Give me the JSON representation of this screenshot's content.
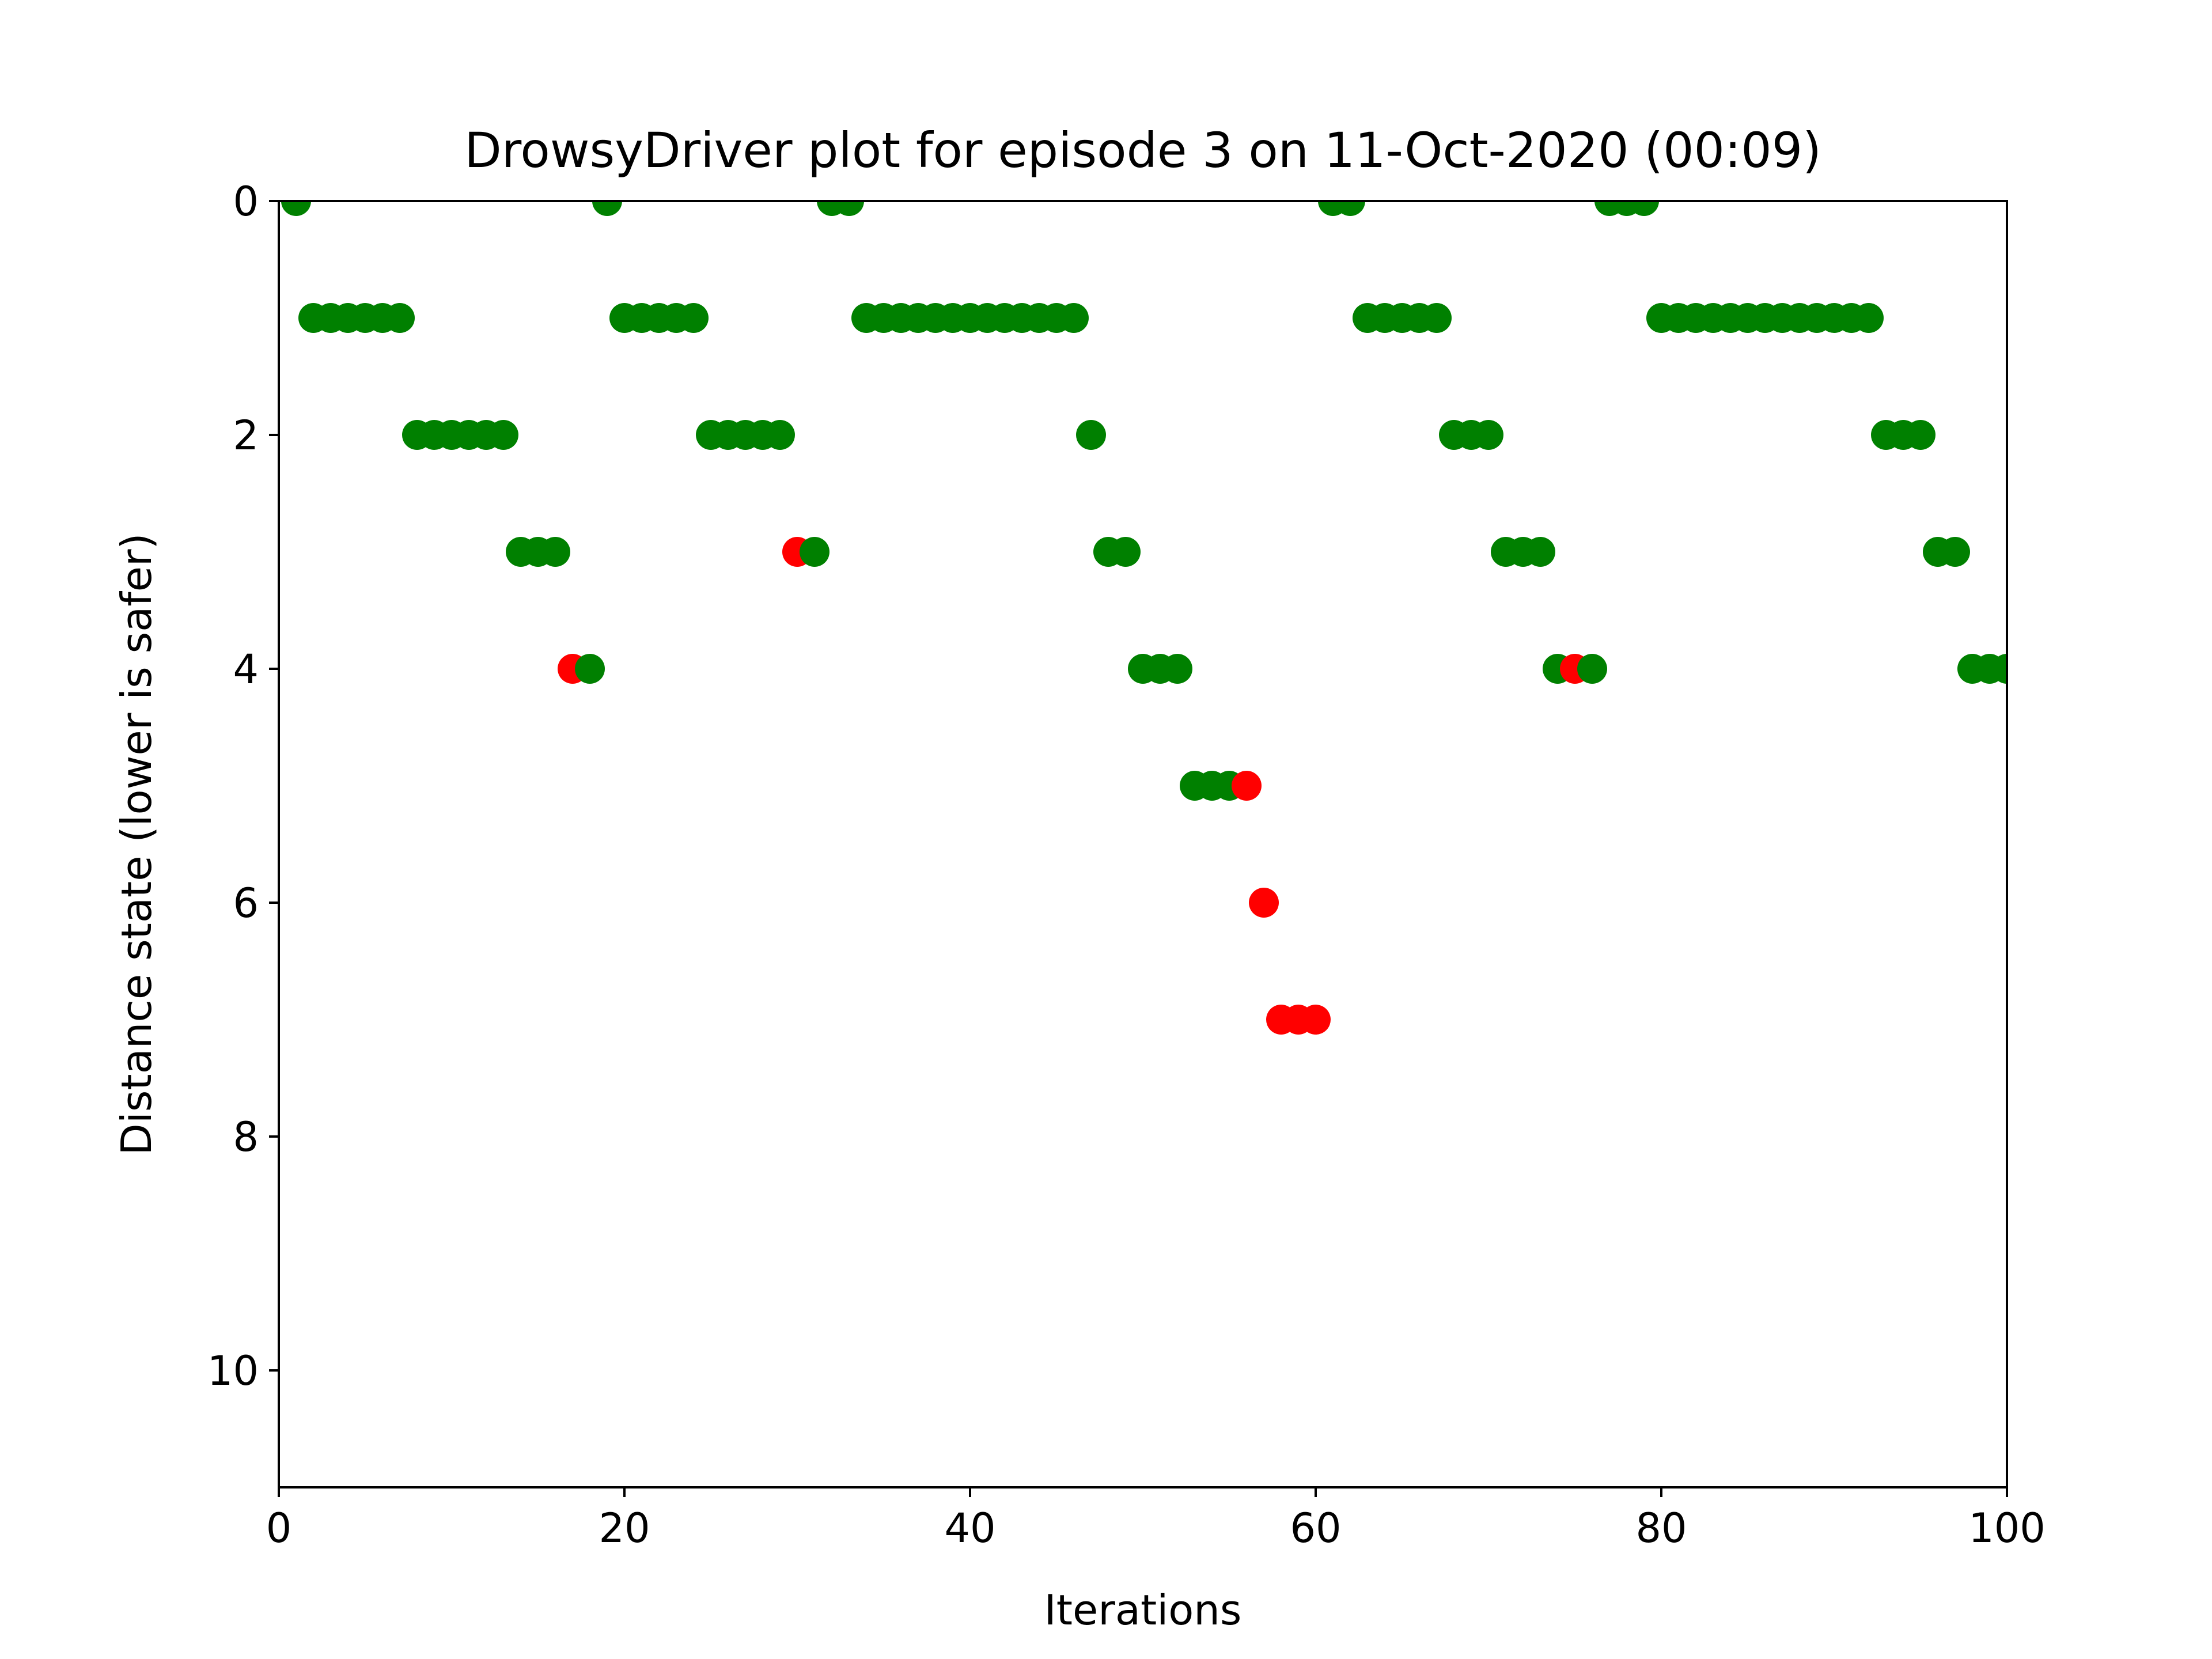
{
  "chart_data": {
    "type": "scatter",
    "title": "DrowsyDriver plot for episode 3 on 11-Oct-2020 (00:09)",
    "xlabel": "Iterations",
    "ylabel": "Distance state (lower is safer)",
    "xlim": [
      0,
      100
    ],
    "ylim": [
      11,
      0
    ],
    "y_axis_inverted": true,
    "grid": false,
    "x_ticks": [
      "0",
      "20",
      "40",
      "60",
      "80",
      "100"
    ],
    "y_ticks": [
      "0",
      "2",
      "4",
      "6",
      "8",
      "10"
    ],
    "colors": {
      "green": "#008000",
      "red": "#ff0000"
    },
    "points": [
      {
        "x": 1,
        "y": 0,
        "color": "green"
      },
      {
        "x": 2,
        "y": 1,
        "color": "green"
      },
      {
        "x": 3,
        "y": 1,
        "color": "green"
      },
      {
        "x": 4,
        "y": 1,
        "color": "green"
      },
      {
        "x": 5,
        "y": 1,
        "color": "green"
      },
      {
        "x": 6,
        "y": 1,
        "color": "green"
      },
      {
        "x": 7,
        "y": 1,
        "color": "green"
      },
      {
        "x": 8,
        "y": 2,
        "color": "green"
      },
      {
        "x": 9,
        "y": 2,
        "color": "green"
      },
      {
        "x": 10,
        "y": 2,
        "color": "green"
      },
      {
        "x": 11,
        "y": 2,
        "color": "green"
      },
      {
        "x": 12,
        "y": 2,
        "color": "green"
      },
      {
        "x": 13,
        "y": 2,
        "color": "green"
      },
      {
        "x": 14,
        "y": 3,
        "color": "green"
      },
      {
        "x": 15,
        "y": 3,
        "color": "green"
      },
      {
        "x": 16,
        "y": 3,
        "color": "green"
      },
      {
        "x": 17,
        "y": 4,
        "color": "red"
      },
      {
        "x": 18,
        "y": 4,
        "color": "green"
      },
      {
        "x": 19,
        "y": 0,
        "color": "green"
      },
      {
        "x": 20,
        "y": 1,
        "color": "green"
      },
      {
        "x": 21,
        "y": 1,
        "color": "green"
      },
      {
        "x": 22,
        "y": 1,
        "color": "green"
      },
      {
        "x": 23,
        "y": 1,
        "color": "green"
      },
      {
        "x": 24,
        "y": 1,
        "color": "green"
      },
      {
        "x": 25,
        "y": 2,
        "color": "green"
      },
      {
        "x": 26,
        "y": 2,
        "color": "green"
      },
      {
        "x": 27,
        "y": 2,
        "color": "green"
      },
      {
        "x": 28,
        "y": 2,
        "color": "green"
      },
      {
        "x": 29,
        "y": 2,
        "color": "green"
      },
      {
        "x": 30,
        "y": 3,
        "color": "red"
      },
      {
        "x": 31,
        "y": 3,
        "color": "green"
      },
      {
        "x": 32,
        "y": 0,
        "color": "green"
      },
      {
        "x": 33,
        "y": 0,
        "color": "green"
      },
      {
        "x": 34,
        "y": 1,
        "color": "green"
      },
      {
        "x": 35,
        "y": 1,
        "color": "green"
      },
      {
        "x": 36,
        "y": 1,
        "color": "green"
      },
      {
        "x": 37,
        "y": 1,
        "color": "green"
      },
      {
        "x": 38,
        "y": 1,
        "color": "green"
      },
      {
        "x": 39,
        "y": 1,
        "color": "green"
      },
      {
        "x": 40,
        "y": 1,
        "color": "green"
      },
      {
        "x": 41,
        "y": 1,
        "color": "green"
      },
      {
        "x": 42,
        "y": 1,
        "color": "green"
      },
      {
        "x": 43,
        "y": 1,
        "color": "green"
      },
      {
        "x": 44,
        "y": 1,
        "color": "green"
      },
      {
        "x": 45,
        "y": 1,
        "color": "green"
      },
      {
        "x": 46,
        "y": 1,
        "color": "green"
      },
      {
        "x": 47,
        "y": 2,
        "color": "green"
      },
      {
        "x": 48,
        "y": 3,
        "color": "green"
      },
      {
        "x": 49,
        "y": 3,
        "color": "green"
      },
      {
        "x": 50,
        "y": 4,
        "color": "green"
      },
      {
        "x": 51,
        "y": 4,
        "color": "green"
      },
      {
        "x": 52,
        "y": 4,
        "color": "green"
      },
      {
        "x": 53,
        "y": 5,
        "color": "green"
      },
      {
        "x": 54,
        "y": 5,
        "color": "green"
      },
      {
        "x": 55,
        "y": 5,
        "color": "green"
      },
      {
        "x": 56,
        "y": 5,
        "color": "red"
      },
      {
        "x": 57,
        "y": 6,
        "color": "red"
      },
      {
        "x": 58,
        "y": 7,
        "color": "red"
      },
      {
        "x": 59,
        "y": 7,
        "color": "red"
      },
      {
        "x": 60,
        "y": 7,
        "color": "red"
      },
      {
        "x": 61,
        "y": 0,
        "color": "green"
      },
      {
        "x": 62,
        "y": 0,
        "color": "green"
      },
      {
        "x": 63,
        "y": 1,
        "color": "green"
      },
      {
        "x": 64,
        "y": 1,
        "color": "green"
      },
      {
        "x": 65,
        "y": 1,
        "color": "green"
      },
      {
        "x": 66,
        "y": 1,
        "color": "green"
      },
      {
        "x": 67,
        "y": 1,
        "color": "green"
      },
      {
        "x": 68,
        "y": 2,
        "color": "green"
      },
      {
        "x": 69,
        "y": 2,
        "color": "green"
      },
      {
        "x": 70,
        "y": 2,
        "color": "green"
      },
      {
        "x": 71,
        "y": 3,
        "color": "green"
      },
      {
        "x": 72,
        "y": 3,
        "color": "green"
      },
      {
        "x": 73,
        "y": 3,
        "color": "green"
      },
      {
        "x": 74,
        "y": 4,
        "color": "green"
      },
      {
        "x": 75,
        "y": 4,
        "color": "red"
      },
      {
        "x": 76,
        "y": 4,
        "color": "green"
      },
      {
        "x": 77,
        "y": 0,
        "color": "green"
      },
      {
        "x": 78,
        "y": 0,
        "color": "green"
      },
      {
        "x": 79,
        "y": 0,
        "color": "green"
      },
      {
        "x": 80,
        "y": 1,
        "color": "green"
      },
      {
        "x": 81,
        "y": 1,
        "color": "green"
      },
      {
        "x": 82,
        "y": 1,
        "color": "green"
      },
      {
        "x": 83,
        "y": 1,
        "color": "green"
      },
      {
        "x": 84,
        "y": 1,
        "color": "green"
      },
      {
        "x": 85,
        "y": 1,
        "color": "green"
      },
      {
        "x": 86,
        "y": 1,
        "color": "green"
      },
      {
        "x": 87,
        "y": 1,
        "color": "green"
      },
      {
        "x": 88,
        "y": 1,
        "color": "green"
      },
      {
        "x": 89,
        "y": 1,
        "color": "green"
      },
      {
        "x": 90,
        "y": 1,
        "color": "green"
      },
      {
        "x": 91,
        "y": 1,
        "color": "green"
      },
      {
        "x": 92,
        "y": 1,
        "color": "green"
      },
      {
        "x": 93,
        "y": 2,
        "color": "green"
      },
      {
        "x": 94,
        "y": 2,
        "color": "green"
      },
      {
        "x": 95,
        "y": 2,
        "color": "green"
      },
      {
        "x": 96,
        "y": 3,
        "color": "green"
      },
      {
        "x": 97,
        "y": 3,
        "color": "green"
      },
      {
        "x": 98,
        "y": 4,
        "color": "green"
      },
      {
        "x": 99,
        "y": 4,
        "color": "green"
      },
      {
        "x": 100,
        "y": 4,
        "color": "green"
      }
    ]
  }
}
